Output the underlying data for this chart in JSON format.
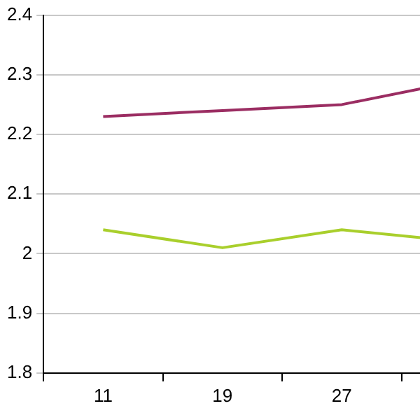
{
  "chart_data": {
    "type": "line",
    "categories": [
      "11",
      "19",
      "27",
      null
    ],
    "series": [
      {
        "color": "#9b2d62",
        "values": [
          2.23,
          2.24,
          2.25,
          2.29
        ]
      },
      {
        "color": "#a9cf2c",
        "values": [
          2.04,
          2.01,
          2.04,
          2.02
        ]
      }
    ],
    "ylim": [
      1.8,
      2.4
    ],
    "yticks": [
      1.8,
      1.9,
      2,
      2.1,
      2.2,
      2.3,
      2.4
    ],
    "grid": "y",
    "legend": false,
    "marker": "none",
    "line_style": "solid"
  }
}
